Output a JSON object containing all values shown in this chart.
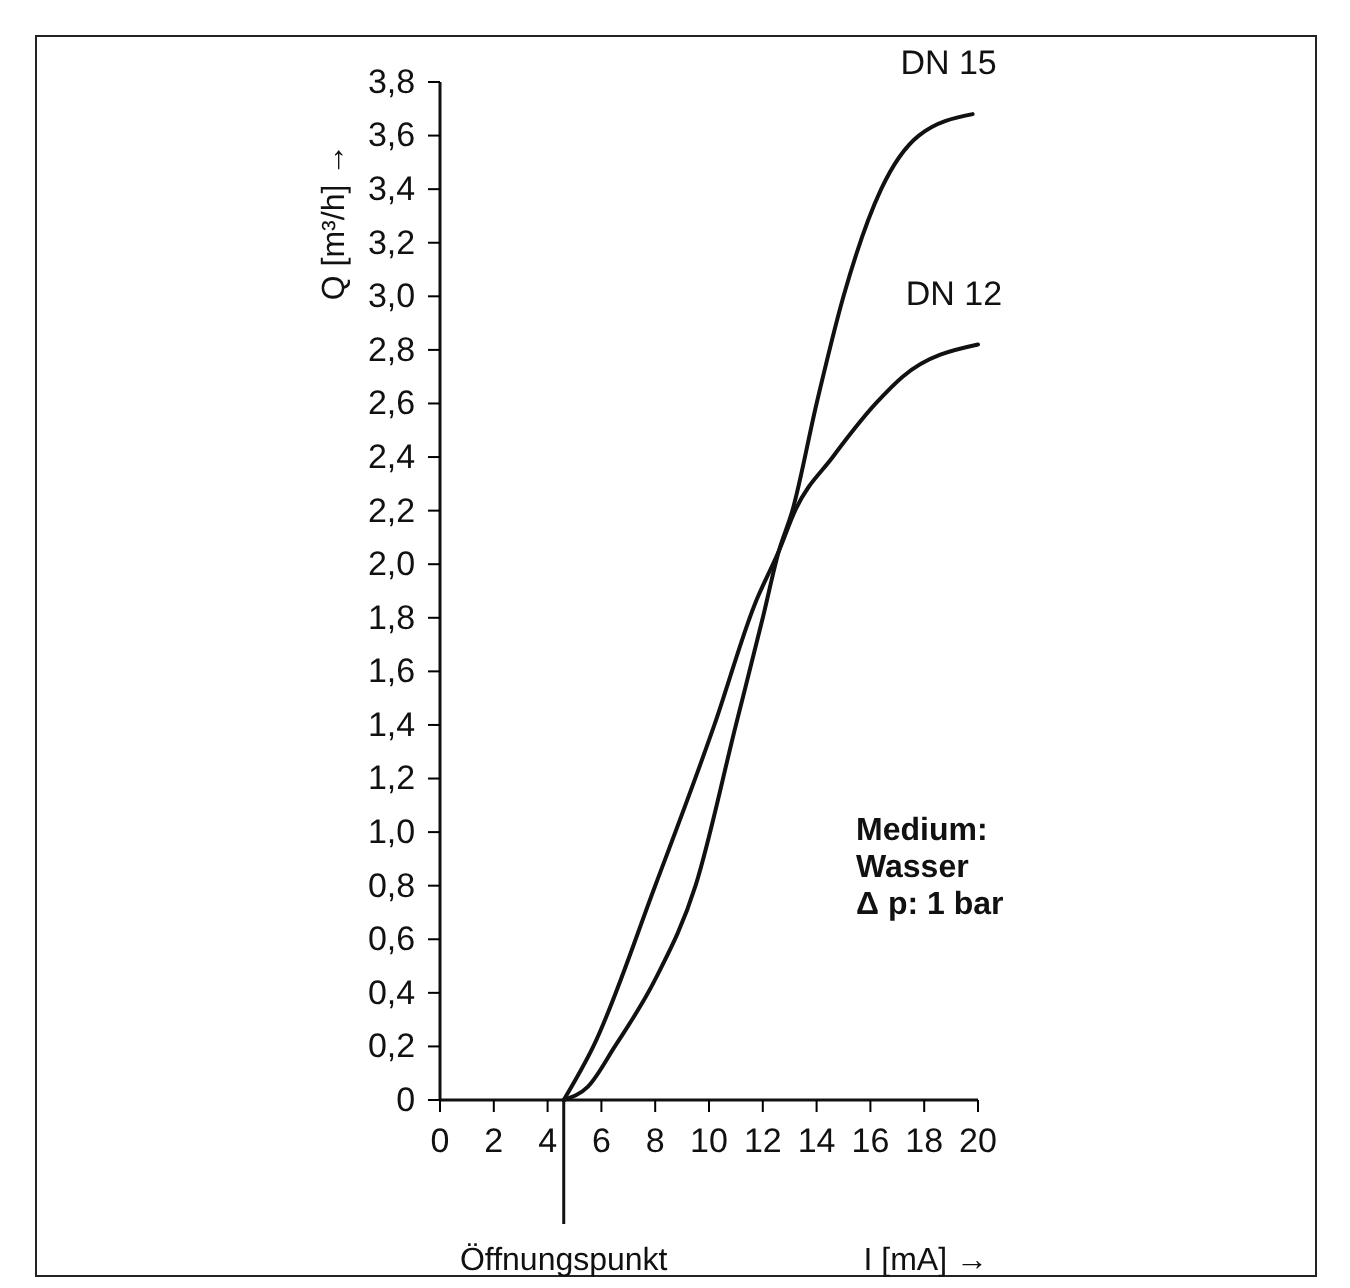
{
  "chart_data": {
    "type": "line",
    "xlabel": "I [mA] →",
    "ylabel": "Q [m³/h] →",
    "xlim": [
      0,
      20
    ],
    "xticks": [
      0,
      2,
      4,
      6,
      8,
      10,
      12,
      14,
      16,
      18,
      20
    ],
    "ylim": [
      0,
      3.8
    ],
    "yticks": [
      0,
      {
        "value": 0.2,
        "label": "0,2"
      },
      {
        "value": 0.4,
        "label": "0,4"
      },
      {
        "value": 0.6,
        "label": "0,6"
      },
      {
        "value": 0.8,
        "label": "0,8"
      },
      {
        "value": 1,
        "label": "1,0"
      },
      {
        "value": 1.2,
        "label": "1,2"
      },
      {
        "value": 1.4,
        "label": "1,4"
      },
      {
        "value": 1.6,
        "label": "1,6"
      },
      {
        "value": 1.8,
        "label": "1,8"
      },
      {
        "value": 2,
        "label": "2,0"
      },
      {
        "value": 2.2,
        "label": "2,2"
      },
      {
        "value": 2.4,
        "label": "2,4"
      },
      {
        "value": 2.6,
        "label": "2,6"
      },
      {
        "value": 2.8,
        "label": "2,8"
      },
      {
        "value": 3,
        "label": "3,0"
      },
      {
        "value": 3.2,
        "label": "3,2"
      },
      {
        "value": 3.4,
        "label": "3,4"
      },
      {
        "value": 3.6,
        "label": "3,6"
      },
      {
        "value": 3.8,
        "label": "3,8"
      }
    ],
    "grid": false,
    "legend": false,
    "marker": "none",
    "line_style": "solid",
    "series": [
      {
        "name": "DN 15",
        "color": "#111111",
        "x": [
          4.6,
          5.5,
          6.5,
          8,
          9.5,
          11,
          12,
          12.6,
          13.1,
          14,
          15,
          16.4,
          17.8,
          19.8
        ],
        "values": [
          0,
          0.05,
          0.2,
          0.45,
          0.8,
          1.4,
          1.8,
          2.05,
          2.2,
          2.6,
          3.0,
          3.4,
          3.6,
          3.68
        ]
      },
      {
        "name": "DN 12",
        "color": "#111111",
        "x": [
          4.6,
          5.7,
          8,
          10.2,
          11.7,
          12.6,
          13.2,
          14.6,
          16.2,
          17.2,
          20
        ],
        "values": [
          0,
          0.2,
          0.8,
          1.4,
          1.85,
          2.05,
          2.2,
          2.4,
          2.6,
          2.7,
          2.82
        ]
      }
    ],
    "ref_lines": [
      {
        "axis": "x",
        "value": 4.6,
        "label": "Öffnungspunkt"
      }
    ],
    "annotations": [
      "Medium:\nWasser\nΔ p: 1 bar"
    ]
  }
}
